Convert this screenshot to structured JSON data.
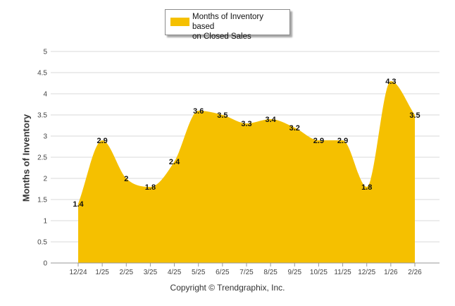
{
  "chart_data": {
    "type": "area",
    "title": "",
    "xlabel": "",
    "ylabel": "Months of Inventory",
    "ylim": [
      0,
      5
    ],
    "yticks": [
      "0",
      "0.5",
      "1",
      "1.5",
      "2",
      "2.5",
      "3",
      "3.5",
      "4",
      "4.5",
      "5"
    ],
    "categories": [
      "12/24",
      "1/25",
      "2/25",
      "3/25",
      "4/25",
      "5/25",
      "6/25",
      "7/25",
      "8/25",
      "9/25",
      "10/25",
      "11/25",
      "12/25",
      "1/26",
      "2/26"
    ],
    "series": [
      {
        "name": "Months of Inventory based on Closed Sales",
        "values": [
          1.4,
          2.9,
          2,
          1.8,
          2.4,
          3.6,
          3.5,
          3.3,
          3.4,
          3.2,
          2.9,
          2.9,
          1.8,
          4.3,
          3.5
        ],
        "labels": [
          "1.4",
          "2.9",
          "2",
          "1.8",
          "2.4",
          "3.6",
          "3.5",
          "3.3",
          "3.4",
          "3.2",
          "2.9",
          "2.9",
          "1.8",
          "4.3",
          "3.5"
        ],
        "color": "#f5c000"
      }
    ],
    "legend": {
      "position": "top-center",
      "label_line1": "Months of Inventory based",
      "label_line2": "on Closed Sales"
    },
    "grid": true
  },
  "footer": {
    "copyright": "Copyright © Trendgraphix, Inc."
  },
  "colors": {
    "grid": "#d9d9d9",
    "axis": "#999999"
  }
}
